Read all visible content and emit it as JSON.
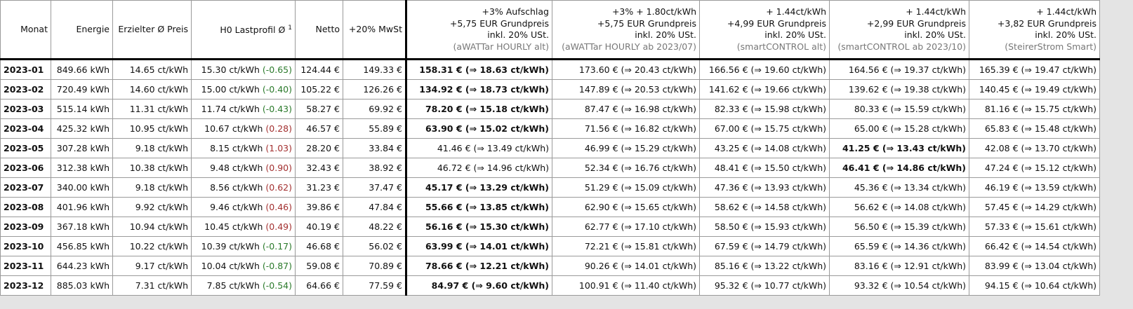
{
  "table": {
    "headers": [
      "Monat",
      "Energie",
      "Erzielter Ø Preis",
      {
        "text": "H0 Lastprofil Ø",
        "sup": "1"
      },
      "Netto",
      "+20% MwSt"
    ],
    "tariff_headers": [
      {
        "lines": [
          "+3% Aufschlag",
          "+5,75 EUR Grundpreis",
          "inkl. 20% USt."
        ],
        "source": "(aWATTar HOURLY alt)"
      },
      {
        "lines": [
          "+3% + 1.80ct/kWh",
          "+5,75 EUR Grundpreis",
          "inkl. 20% USt."
        ],
        "source": "(aWATTar HOURLY ab 2023/07)"
      },
      {
        "lines": [
          "+ 1.44ct/kWh",
          "+4,99 EUR Grundpreis",
          "inkl. 20% USt."
        ],
        "source": "(smartCONTROL alt)"
      },
      {
        "lines": [
          "+ 1.44ct/kWh",
          "+2,99 EUR Grundpreis",
          "inkl. 20% USt."
        ],
        "source": "(smartCONTROL ab 2023/10)"
      },
      {
        "lines": [
          "+ 1.44ct/kWh",
          "+3,82 EUR Grundpreis",
          "inkl. 20% USt."
        ],
        "source": "(SteirerStrom Smart)"
      }
    ],
    "rows": [
      {
        "month": "2023-01",
        "energy": "849.66 kWh",
        "price": "14.65 ct/kWh",
        "h0": "15.30 ct/kWh",
        "h0_diff": "(-0.65)",
        "h0_diff_color": "#2b7a2b",
        "netto": "124.44 €",
        "mwst": "149.33 €",
        "tariffs": [
          "158.31 € (⇒ 18.63 ct/kWh)",
          "173.60 € (⇒ 20.43 ct/kWh)",
          "166.56 € (⇒ 19.60 ct/kWh)",
          "164.56 € (⇒ 19.37 ct/kWh)",
          "165.39 € (⇒ 19.47 ct/kWh)"
        ],
        "best": 0
      },
      {
        "month": "2023-02",
        "energy": "720.49 kWh",
        "price": "14.60 ct/kWh",
        "h0": "15.00 ct/kWh",
        "h0_diff": "(-0.40)",
        "h0_diff_color": "#2b7a2b",
        "netto": "105.22 €",
        "mwst": "126.26 €",
        "tariffs": [
          "134.92 € (⇒ 18.73 ct/kWh)",
          "147.89 € (⇒ 20.53 ct/kWh)",
          "141.62 € (⇒ 19.66 ct/kWh)",
          "139.62 € (⇒ 19.38 ct/kWh)",
          "140.45 € (⇒ 19.49 ct/kWh)"
        ],
        "best": 0
      },
      {
        "month": "2023-03",
        "energy": "515.14 kWh",
        "price": "11.31 ct/kWh",
        "h0": "11.74 ct/kWh",
        "h0_diff": "(-0.43)",
        "h0_diff_color": "#2b7a2b",
        "netto": "58.27 €",
        "mwst": "69.92 €",
        "tariffs": [
          "78.20 € (⇒ 15.18 ct/kWh)",
          "87.47 € (⇒ 16.98 ct/kWh)",
          "82.33 € (⇒ 15.98 ct/kWh)",
          "80.33 € (⇒ 15.59 ct/kWh)",
          "81.16 € (⇒ 15.75 ct/kWh)"
        ],
        "best": 0
      },
      {
        "month": "2023-04",
        "energy": "425.32 kWh",
        "price": "10.95 ct/kWh",
        "h0": "10.67 ct/kWh",
        "h0_diff": "(0.28)",
        "h0_diff_color": "#a33030",
        "netto": "46.57 €",
        "mwst": "55.89 €",
        "tariffs": [
          "63.90 € (⇒ 15.02 ct/kWh)",
          "71.56 € (⇒ 16.82 ct/kWh)",
          "67.00 € (⇒ 15.75 ct/kWh)",
          "65.00 € (⇒ 15.28 ct/kWh)",
          "65.83 € (⇒ 15.48 ct/kWh)"
        ],
        "best": 0
      },
      {
        "month": "2023-05",
        "energy": "307.28 kWh",
        "price": "9.18 ct/kWh",
        "h0": "8.15 ct/kWh",
        "h0_diff": "(1.03)",
        "h0_diff_color": "#a33030",
        "netto": "28.20 €",
        "mwst": "33.84 €",
        "tariffs": [
          "41.46 € (⇒ 13.49 ct/kWh)",
          "46.99 € (⇒ 15.29 ct/kWh)",
          "43.25 € (⇒ 14.08 ct/kWh)",
          "41.25 € (⇒ 13.43 ct/kWh)",
          "42.08 € (⇒ 13.70 ct/kWh)"
        ],
        "best": 3
      },
      {
        "month": "2023-06",
        "energy": "312.38 kWh",
        "price": "10.38 ct/kWh",
        "h0": "9.48 ct/kWh",
        "h0_diff": "(0.90)",
        "h0_diff_color": "#a33030",
        "netto": "32.43 €",
        "mwst": "38.92 €",
        "tariffs": [
          "46.72 € (⇒ 14.96 ct/kWh)",
          "52.34 € (⇒ 16.76 ct/kWh)",
          "48.41 € (⇒ 15.50 ct/kWh)",
          "46.41 € (⇒ 14.86 ct/kWh)",
          "47.24 € (⇒ 15.12 ct/kWh)"
        ],
        "best": 3
      },
      {
        "month": "2023-07",
        "energy": "340.00 kWh",
        "price": "9.18 ct/kWh",
        "h0": "8.56 ct/kWh",
        "h0_diff": "(0.62)",
        "h0_diff_color": "#a33030",
        "netto": "31.23 €",
        "mwst": "37.47 €",
        "tariffs": [
          "45.17 € (⇒ 13.29 ct/kWh)",
          "51.29 € (⇒ 15.09 ct/kWh)",
          "47.36 € (⇒ 13.93 ct/kWh)",
          "45.36 € (⇒ 13.34 ct/kWh)",
          "46.19 € (⇒ 13.59 ct/kWh)"
        ],
        "best": 0
      },
      {
        "month": "2023-08",
        "energy": "401.96 kWh",
        "price": "9.92 ct/kWh",
        "h0": "9.46 ct/kWh",
        "h0_diff": "(0.46)",
        "h0_diff_color": "#a33030",
        "netto": "39.86 €",
        "mwst": "47.84 €",
        "tariffs": [
          "55.66 € (⇒ 13.85 ct/kWh)",
          "62.90 € (⇒ 15.65 ct/kWh)",
          "58.62 € (⇒ 14.58 ct/kWh)",
          "56.62 € (⇒ 14.08 ct/kWh)",
          "57.45 € (⇒ 14.29 ct/kWh)"
        ],
        "best": 0
      },
      {
        "month": "2023-09",
        "energy": "367.18 kWh",
        "price": "10.94 ct/kWh",
        "h0": "10.45 ct/kWh",
        "h0_diff": "(0.49)",
        "h0_diff_color": "#a33030",
        "netto": "40.19 €",
        "mwst": "48.22 €",
        "tariffs": [
          "56.16 € (⇒ 15.30 ct/kWh)",
          "62.77 € (⇒ 17.10 ct/kWh)",
          "58.50 € (⇒ 15.93 ct/kWh)",
          "56.50 € (⇒ 15.39 ct/kWh)",
          "57.33 € (⇒ 15.61 ct/kWh)"
        ],
        "best": 0
      },
      {
        "month": "2023-10",
        "energy": "456.85 kWh",
        "price": "10.22 ct/kWh",
        "h0": "10.39 ct/kWh",
        "h0_diff": "(-0.17)",
        "h0_diff_color": "#2b7a2b",
        "netto": "46.68 €",
        "mwst": "56.02 €",
        "tariffs": [
          "63.99 € (⇒ 14.01 ct/kWh)",
          "72.21 € (⇒ 15.81 ct/kWh)",
          "67.59 € (⇒ 14.79 ct/kWh)",
          "65.59 € (⇒ 14.36 ct/kWh)",
          "66.42 € (⇒ 14.54 ct/kWh)"
        ],
        "best": 0
      },
      {
        "month": "2023-11",
        "energy": "644.23 kWh",
        "price": "9.17 ct/kWh",
        "h0": "10.04 ct/kWh",
        "h0_diff": "(-0.87)",
        "h0_diff_color": "#2b7a2b",
        "netto": "59.08 €",
        "mwst": "70.89 €",
        "tariffs": [
          "78.66 € (⇒ 12.21 ct/kWh)",
          "90.26 € (⇒ 14.01 ct/kWh)",
          "85.16 € (⇒ 13.22 ct/kWh)",
          "83.16 € (⇒ 12.91 ct/kWh)",
          "83.99 € (⇒ 13.04 ct/kWh)"
        ],
        "best": 0
      },
      {
        "month": "2023-12",
        "energy": "885.03 kWh",
        "price": "7.31 ct/kWh",
        "h0": "7.85 ct/kWh",
        "h0_diff": "(-0.54)",
        "h0_diff_color": "#2b7a2b",
        "netto": "64.66 €",
        "mwst": "77.59 €",
        "tariffs": [
          "84.97 € (⇒ 9.60 ct/kWh)",
          "100.91 € (⇒ 11.40 ct/kWh)",
          "95.32 € (⇒ 10.77 ct/kWh)",
          "93.32 € (⇒ 10.54 ct/kWh)",
          "94.15 € (⇒ 10.64 ct/kWh)"
        ],
        "best": 0
      }
    ]
  }
}
